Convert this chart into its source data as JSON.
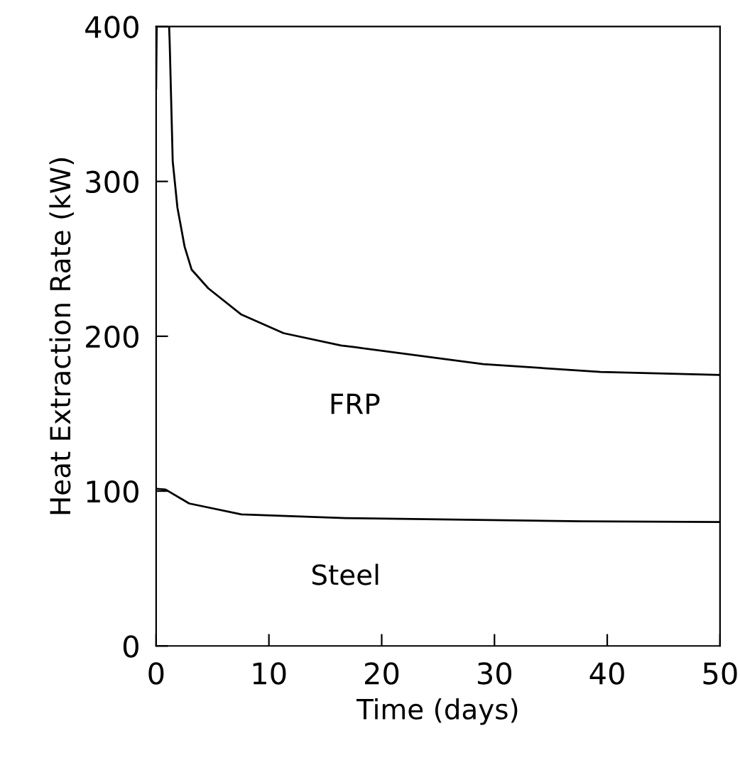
{
  "chart_data": {
    "type": "line",
    "xlabel": "Time (days)",
    "ylabel": "Heat Extraction Rate (kW)",
    "xlim": [
      0,
      50
    ],
    "ylim": [
      0,
      400
    ],
    "xticks": [
      0,
      10,
      20,
      30,
      40,
      50
    ],
    "yticks": [
      0,
      100,
      200,
      300,
      400
    ],
    "grid": false,
    "legend": false,
    "marker": "none",
    "line_style": "solid",
    "series": [
      {
        "name": "FRP",
        "color": "#000000",
        "x": [
          0,
          0.05,
          null,
          1.15,
          1.2,
          1.47,
          1.89,
          2.52,
          3.15,
          4.62,
          7.56,
          11.3,
          16.4,
          17.6,
          29,
          39.4,
          50
        ],
        "values": [
          360,
          400,
          null,
          400,
          390,
          313,
          283,
          258,
          243,
          231,
          214,
          202,
          194,
          193,
          182,
          177,
          175
        ]
      },
      {
        "name": "Steel",
        "color": "#000000",
        "x": [
          0,
          0.84,
          2.93,
          7.56,
          16.8,
          37.8,
          50
        ],
        "values": [
          101.5,
          101,
          92,
          85,
          82.6,
          80.5,
          80
        ]
      }
    ]
  }
}
